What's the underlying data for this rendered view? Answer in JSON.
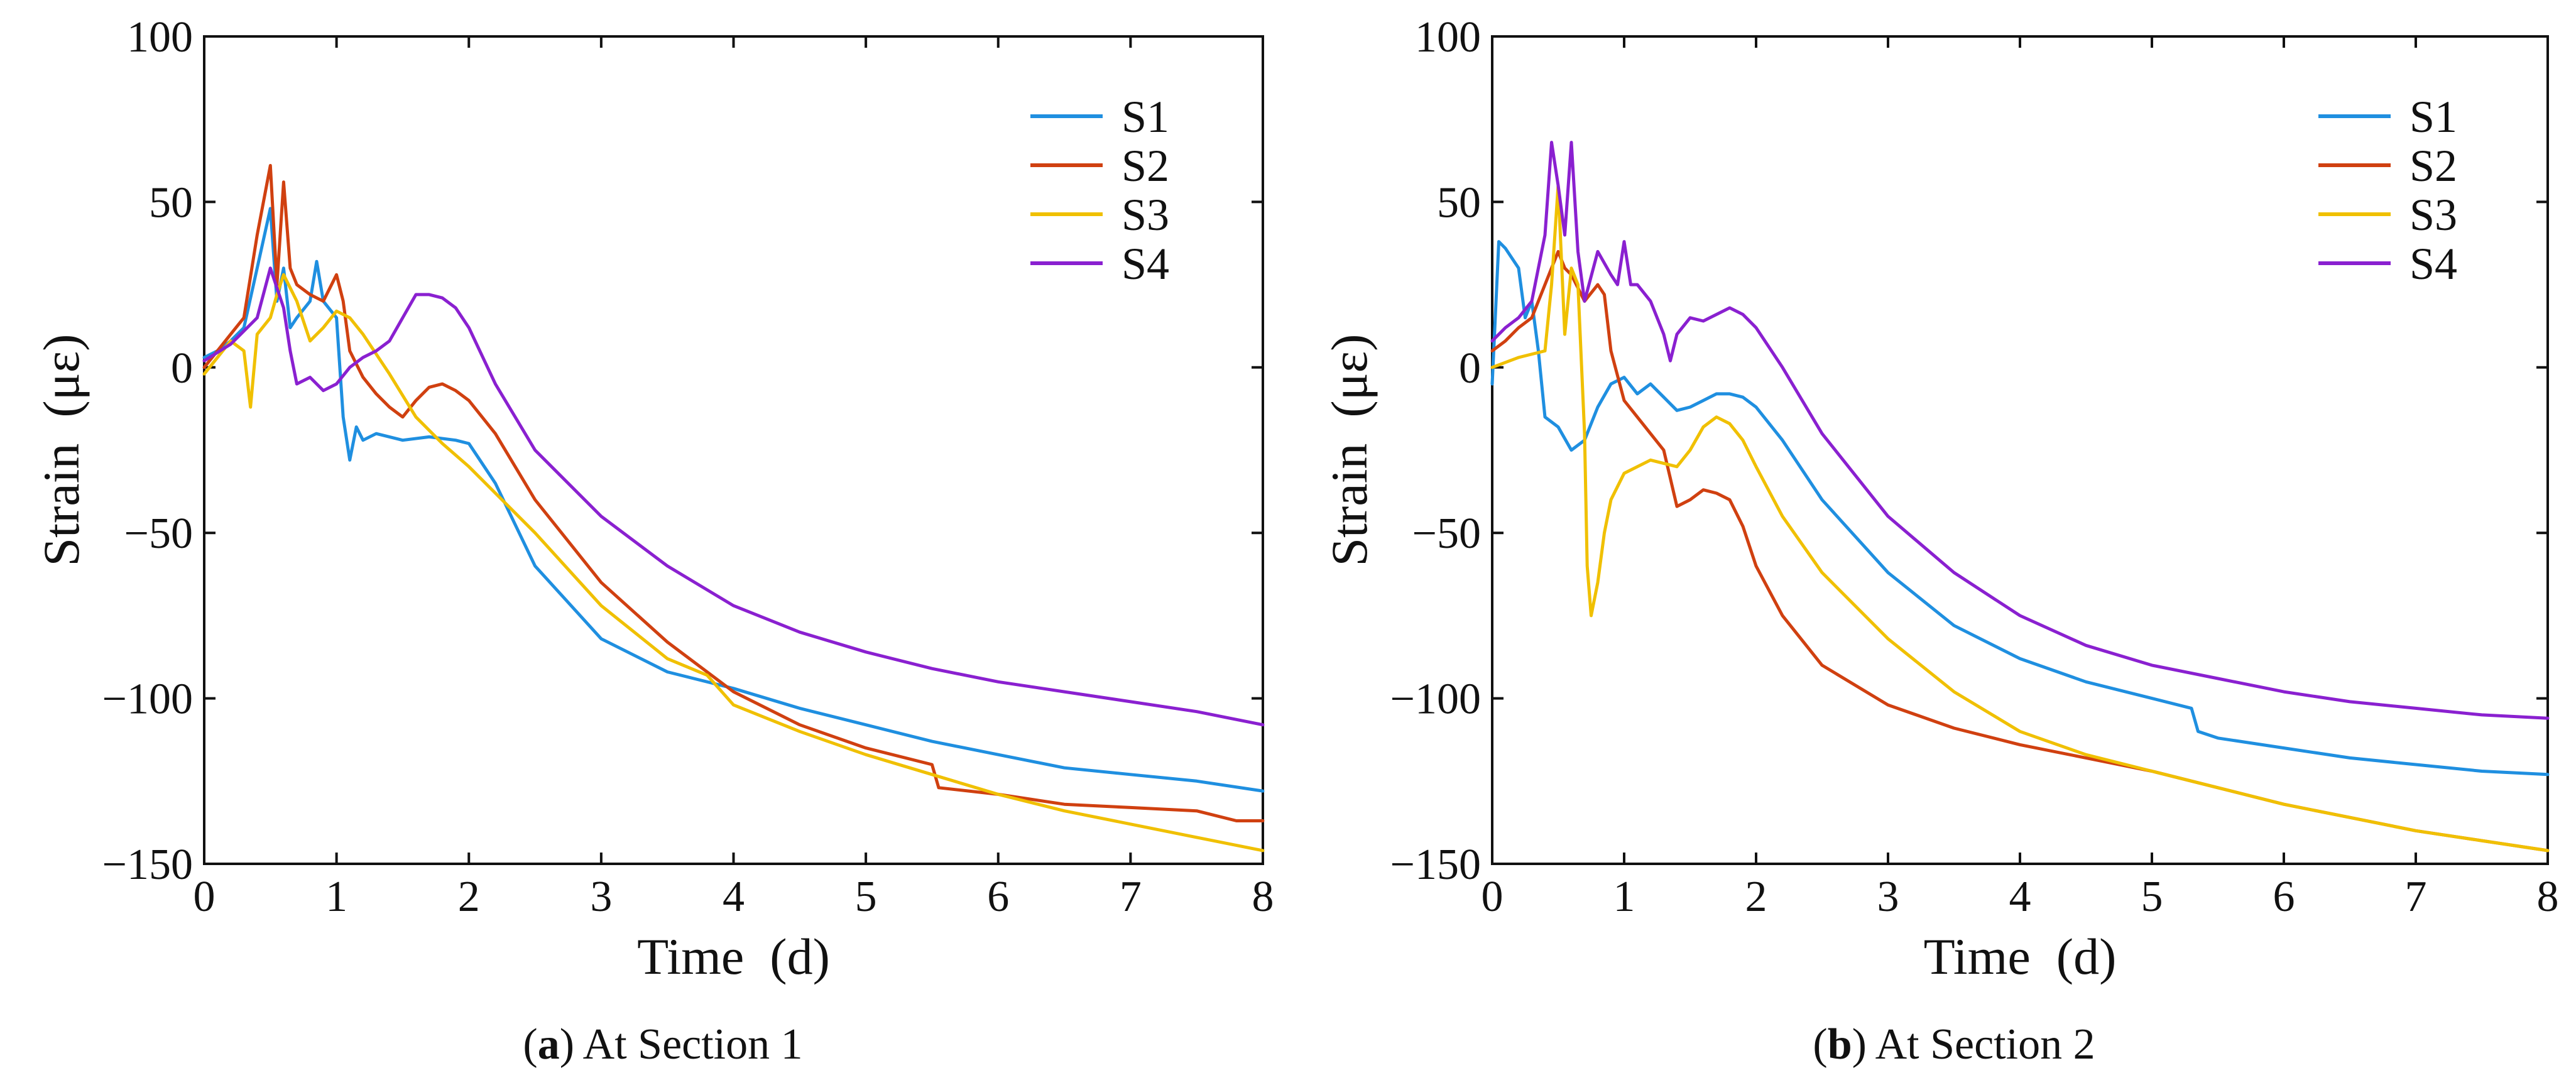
{
  "chart_data": [
    {
      "type": "line",
      "panel_letter": "a",
      "caption": "At Section 1",
      "xlabel": "Time (d)",
      "ylabel": "Strain (με)",
      "xlim": [
        0,
        8
      ],
      "ylim": [
        -150,
        100
      ],
      "xticks": [
        0,
        1,
        2,
        3,
        4,
        5,
        6,
        7,
        8
      ],
      "yticks": [
        100,
        50,
        0,
        -50,
        -100,
        -150
      ],
      "ytick_labels": [
        "100",
        "50",
        "0",
        "−50",
        "−100",
        "−150"
      ],
      "legend": "top-right",
      "series": [
        {
          "name": "S1",
          "color": "#1f8fe0",
          "x": [
            0,
            0.1,
            0.2,
            0.3,
            0.4,
            0.5,
            0.55,
            0.6,
            0.65,
            0.7,
            0.8,
            0.85,
            0.9,
            1.0,
            1.05,
            1.1,
            1.15,
            1.2,
            1.3,
            1.5,
            1.7,
            1.9,
            2.0,
            2.2,
            2.5,
            3.0,
            3.5,
            4.0,
            4.5,
            5.0,
            5.5,
            6.0,
            6.5,
            7.0,
            7.5,
            8.0
          ],
          "y": [
            3,
            5,
            8,
            12,
            30,
            48,
            20,
            30,
            12,
            15,
            20,
            32,
            20,
            15,
            -15,
            -28,
            -18,
            -22,
            -20,
            -22,
            -21,
            -22,
            -23,
            -35,
            -60,
            -82,
            -92,
            -97,
            -103,
            -108,
            -113,
            -117,
            -121,
            -123,
            -125,
            -128
          ]
        },
        {
          "name": "S2",
          "color": "#d04010",
          "x": [
            0,
            0.1,
            0.2,
            0.3,
            0.4,
            0.5,
            0.55,
            0.6,
            0.65,
            0.7,
            0.8,
            0.9,
            1.0,
            1.05,
            1.1,
            1.2,
            1.3,
            1.4,
            1.5,
            1.6,
            1.7,
            1.8,
            1.9,
            2.0,
            2.2,
            2.5,
            3.0,
            3.5,
            4.0,
            4.5,
            5.0,
            5.5,
            5.55,
            6.0,
            6.5,
            7.0,
            7.5,
            7.8,
            8.0
          ],
          "y": [
            0,
            5,
            10,
            15,
            40,
            61,
            25,
            56,
            30,
            25,
            22,
            20,
            28,
            20,
            5,
            -3,
            -8,
            -12,
            -15,
            -10,
            -6,
            -5,
            -7,
            -10,
            -20,
            -40,
            -65,
            -83,
            -98,
            -108,
            -115,
            -120,
            -127,
            -129,
            -132,
            -133,
            -134,
            -137,
            -137
          ]
        },
        {
          "name": "S3",
          "color": "#f0c000",
          "x": [
            0,
            0.1,
            0.2,
            0.3,
            0.35,
            0.4,
            0.5,
            0.55,
            0.6,
            0.7,
            0.8,
            0.9,
            1.0,
            1.1,
            1.2,
            1.4,
            1.6,
            1.8,
            2.0,
            2.5,
            3.0,
            3.5,
            3.8,
            4.0,
            4.5,
            5.0,
            5.5,
            6.0,
            6.5,
            7.0,
            7.5,
            8.0
          ],
          "y": [
            -2,
            3,
            8,
            5,
            -12,
            10,
            15,
            22,
            28,
            20,
            8,
            12,
            17,
            15,
            10,
            -2,
            -15,
            -23,
            -30,
            -50,
            -72,
            -88,
            -93,
            -102,
            -110,
            -117,
            -123,
            -129,
            -134,
            -138,
            -142,
            -146
          ]
        },
        {
          "name": "S4",
          "color": "#8a20d0",
          "x": [
            0,
            0.2,
            0.4,
            0.5,
            0.6,
            0.65,
            0.7,
            0.8,
            0.9,
            1.0,
            1.1,
            1.2,
            1.3,
            1.4,
            1.5,
            1.6,
            1.7,
            1.8,
            1.9,
            2.0,
            2.2,
            2.5,
            3.0,
            3.5,
            4.0,
            4.5,
            5.0,
            5.5,
            6.0,
            6.5,
            7.0,
            7.5,
            8.0
          ],
          "y": [
            2,
            7,
            15,
            30,
            18,
            5,
            -5,
            -3,
            -7,
            -5,
            0,
            3,
            5,
            8,
            15,
            22,
            22,
            21,
            18,
            12,
            -5,
            -25,
            -45,
            -60,
            -72,
            -80,
            -86,
            -91,
            -95,
            -98,
            -101,
            -104,
            -108
          ]
        }
      ]
    },
    {
      "type": "line",
      "panel_letter": "b",
      "caption": "At Section 2",
      "xlabel": "Time (d)",
      "ylabel": "Strain (με)",
      "xlim": [
        0,
        8
      ],
      "ylim": [
        -150,
        100
      ],
      "xticks": [
        0,
        1,
        2,
        3,
        4,
        5,
        6,
        7,
        8
      ],
      "yticks": [
        100,
        50,
        0,
        -50,
        -100,
        -150
      ],
      "ytick_labels": [
        "100",
        "50",
        "0",
        "−50",
        "−100",
        "−150"
      ],
      "legend": "top-right",
      "series": [
        {
          "name": "S1",
          "color": "#1f8fe0",
          "x": [
            0,
            0.05,
            0.1,
            0.2,
            0.25,
            0.3,
            0.35,
            0.4,
            0.5,
            0.6,
            0.7,
            0.8,
            0.9,
            1.0,
            1.1,
            1.2,
            1.3,
            1.4,
            1.5,
            1.6,
            1.7,
            1.8,
            1.9,
            2.0,
            2.2,
            2.5,
            3.0,
            3.5,
            4.0,
            4.5,
            5.0,
            5.3,
            5.35,
            5.5,
            6.0,
            6.5,
            7.0,
            7.5,
            8.0
          ],
          "y": [
            -5,
            38,
            36,
            30,
            15,
            20,
            5,
            -15,
            -18,
            -25,
            -22,
            -12,
            -5,
            -3,
            -8,
            -5,
            -9,
            -13,
            -12,
            -10,
            -8,
            -8,
            -9,
            -12,
            -22,
            -40,
            -62,
            -78,
            -88,
            -95,
            -100,
            -103,
            -110,
            -112,
            -115,
            -118,
            -120,
            -122,
            -123
          ]
        },
        {
          "name": "S2",
          "color": "#d04010",
          "x": [
            0,
            0.1,
            0.2,
            0.3,
            0.4,
            0.5,
            0.55,
            0.6,
            0.7,
            0.8,
            0.85,
            0.9,
            1.0,
            1.1,
            1.2,
            1.3,
            1.4,
            1.5,
            1.6,
            1.7,
            1.8,
            1.9,
            2.0,
            2.2,
            2.5,
            3.0,
            3.5,
            4.0,
            4.5,
            5.0,
            5.5,
            6.0,
            6.5,
            7.0,
            7.5,
            8.0
          ],
          "y": [
            5,
            8,
            12,
            15,
            25,
            35,
            30,
            28,
            20,
            25,
            22,
            5,
            -10,
            -15,
            -20,
            -25,
            -42,
            -40,
            -37,
            -38,
            -40,
            -48,
            -60,
            -75,
            -90,
            -102,
            -109,
            -114,
            -118,
            -122,
            -127,
            -132,
            -136,
            -140,
            -143,
            -146
          ]
        },
        {
          "name": "S3",
          "color": "#f0c000",
          "x": [
            0,
            0.2,
            0.4,
            0.45,
            0.5,
            0.55,
            0.6,
            0.65,
            0.7,
            0.72,
            0.75,
            0.8,
            0.85,
            0.9,
            1.0,
            1.2,
            1.4,
            1.5,
            1.6,
            1.7,
            1.8,
            1.9,
            2.0,
            2.2,
            2.5,
            3.0,
            3.5,
            4.0,
            4.5,
            5.0,
            5.5,
            6.0,
            6.5,
            7.0,
            7.5,
            8.0
          ],
          "y": [
            0,
            3,
            5,
            25,
            55,
            10,
            30,
            25,
            -20,
            -60,
            -75,
            -65,
            -50,
            -40,
            -32,
            -28,
            -30,
            -25,
            -18,
            -15,
            -17,
            -22,
            -30,
            -45,
            -62,
            -82,
            -98,
            -110,
            -117,
            -122,
            -127,
            -132,
            -136,
            -140,
            -143,
            -146
          ]
        },
        {
          "name": "S4",
          "color": "#8a20d0",
          "x": [
            0,
            0.1,
            0.2,
            0.3,
            0.4,
            0.45,
            0.5,
            0.55,
            0.6,
            0.65,
            0.7,
            0.8,
            0.9,
            0.95,
            1.0,
            1.05,
            1.1,
            1.2,
            1.3,
            1.35,
            1.4,
            1.5,
            1.6,
            1.7,
            1.8,
            1.9,
            2.0,
            2.2,
            2.5,
            3.0,
            3.5,
            4.0,
            4.5,
            5.0,
            5.5,
            6.0,
            6.5,
            7.0,
            7.5,
            8.0
          ],
          "y": [
            8,
            12,
            15,
            20,
            40,
            68,
            55,
            40,
            68,
            35,
            20,
            35,
            28,
            25,
            38,
            25,
            25,
            20,
            10,
            2,
            10,
            15,
            14,
            16,
            18,
            16,
            12,
            0,
            -20,
            -45,
            -62,
            -75,
            -84,
            -90,
            -94,
            -98,
            -101,
            -103,
            -105,
            -106
          ]
        }
      ]
    }
  ]
}
